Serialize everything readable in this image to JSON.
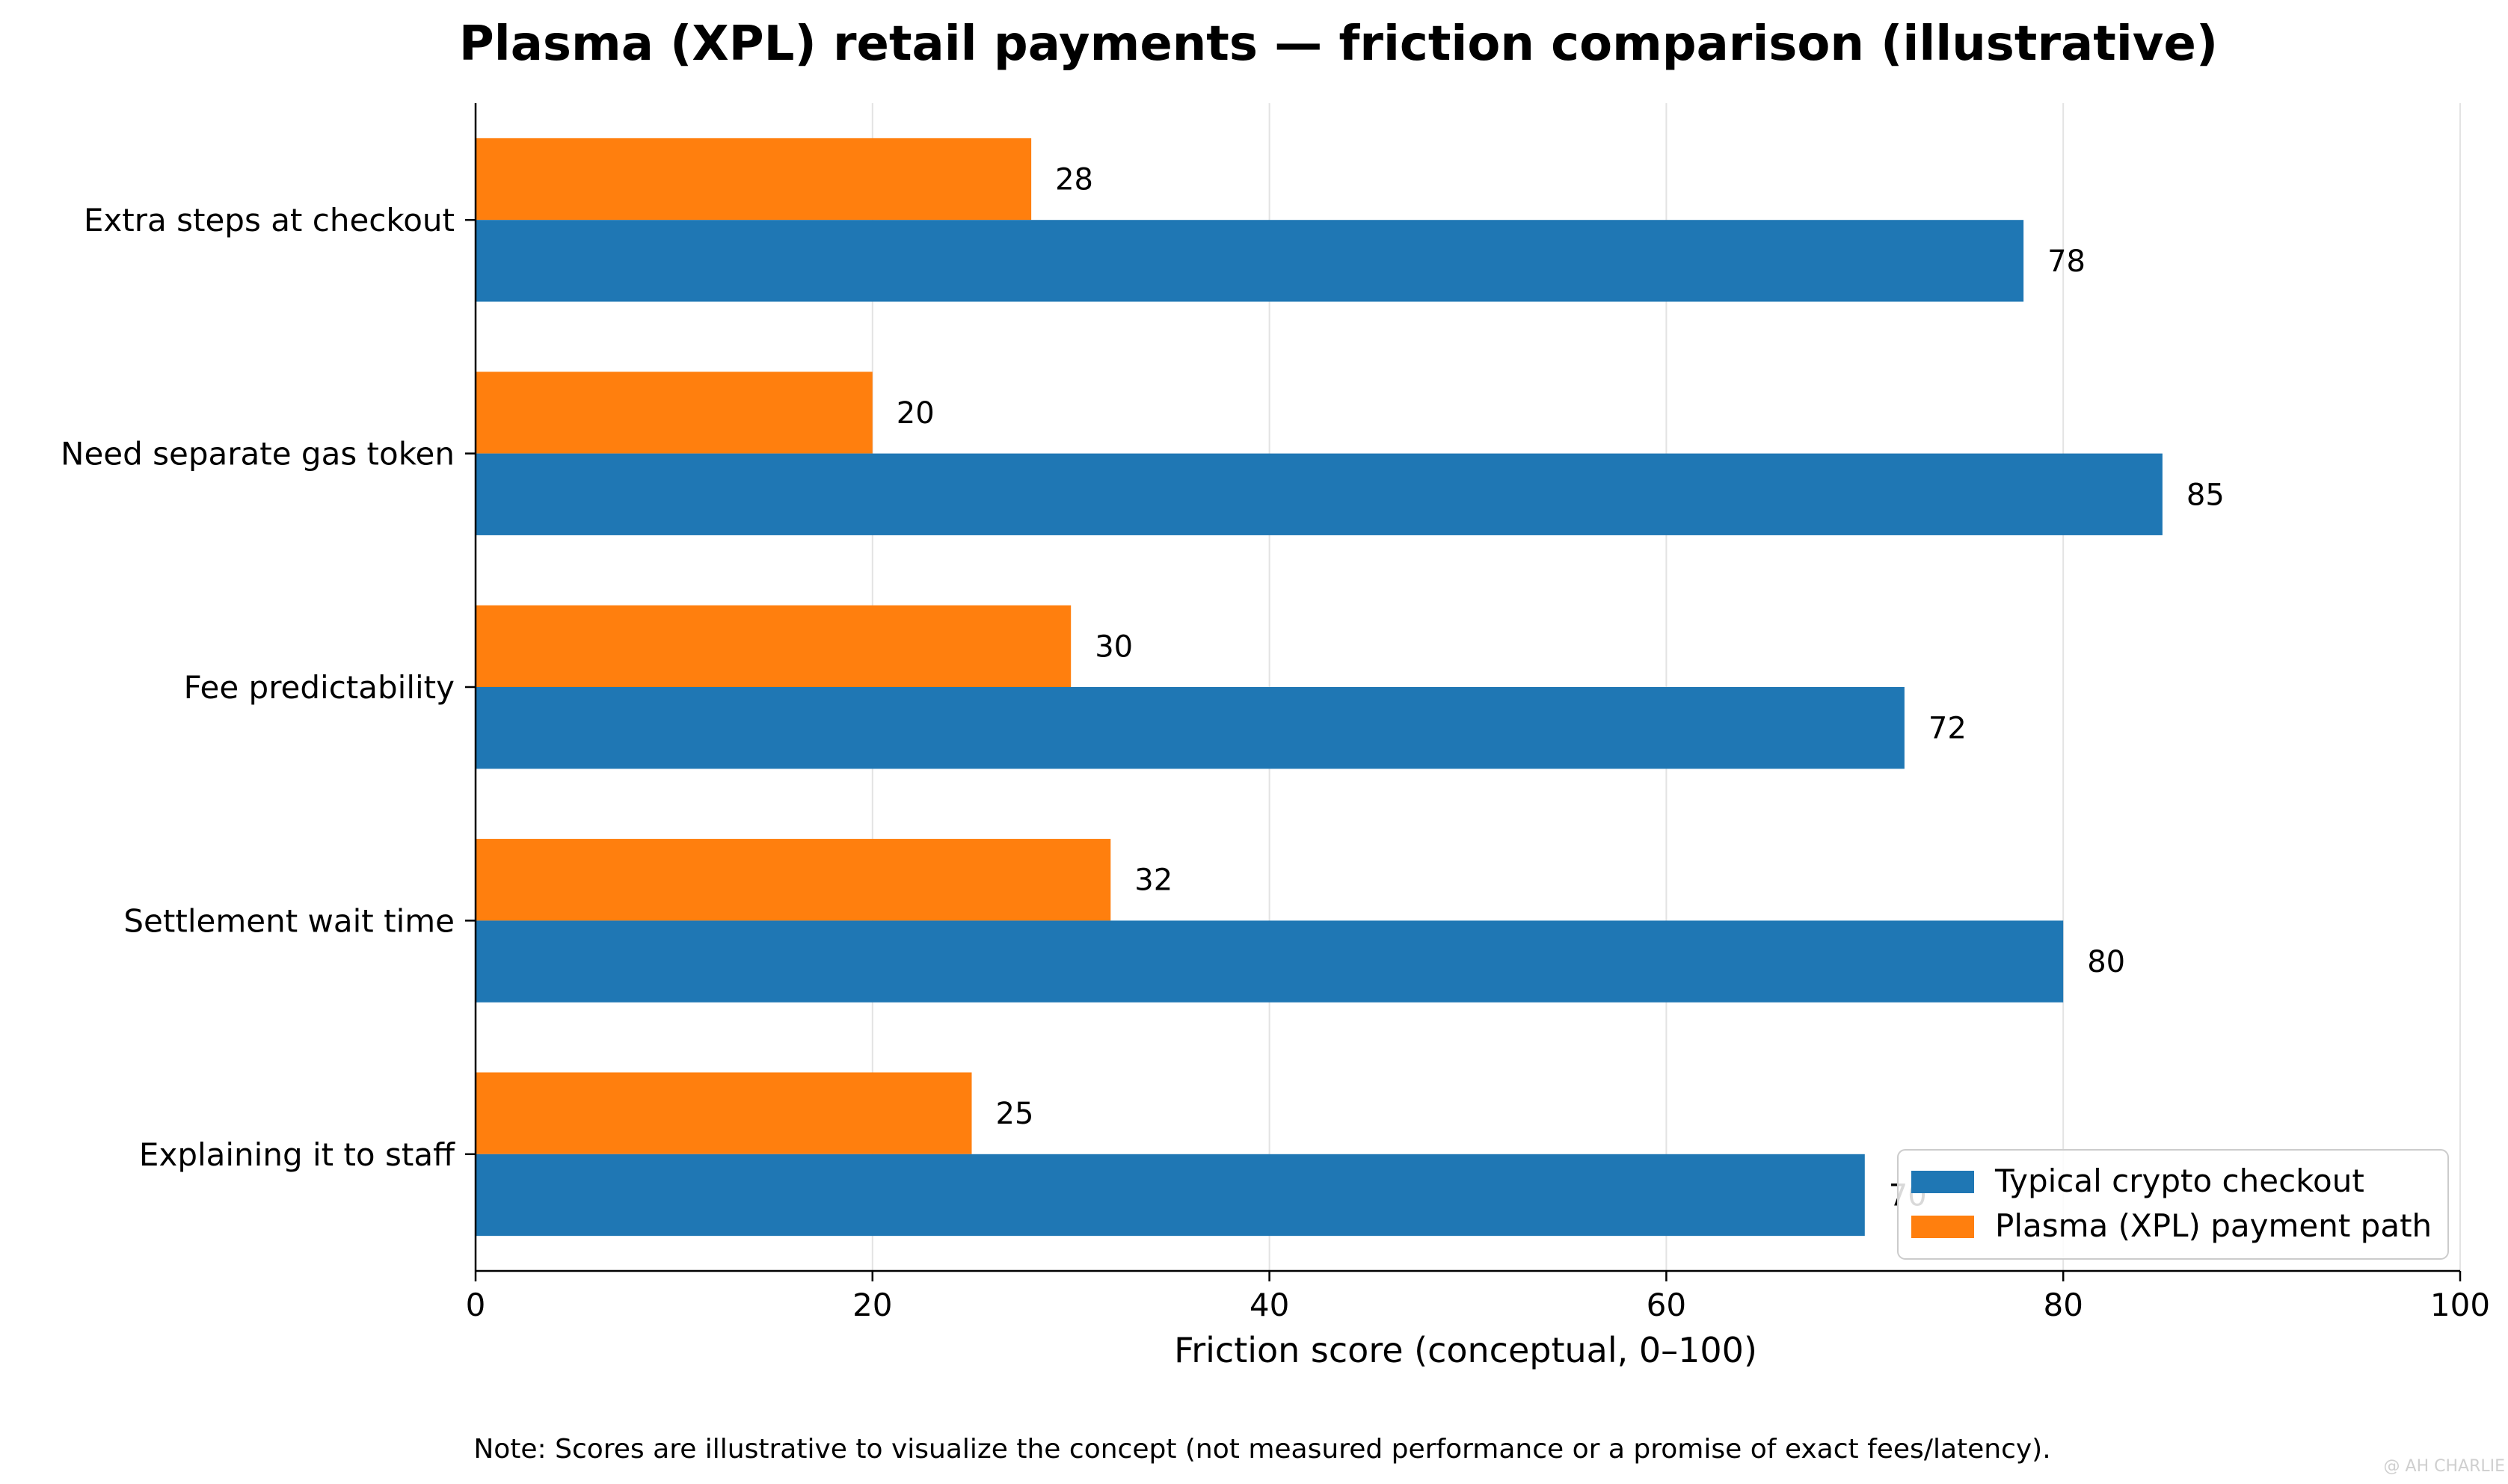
{
  "chart_data": {
    "type": "bar",
    "orientation": "horizontal",
    "title": "Plasma (XPL) retail payments — friction comparison (illustrative)",
    "xlabel": "Friction score (conceptual, 0–100)",
    "ylabel": "",
    "xlim": [
      0,
      100
    ],
    "xticks": [
      0,
      20,
      40,
      60,
      80,
      100
    ],
    "grid": "vertical",
    "legend_position": "lower-right",
    "categories": [
      "Extra steps at checkout",
      "Need separate gas token",
      "Fee predictability",
      "Settlement wait time",
      "Explaining it to staff"
    ],
    "series": [
      {
        "name": "Typical crypto checkout",
        "color": "#1f77b4",
        "values": [
          78,
          85,
          72,
          80,
          70
        ]
      },
      {
        "name": "Plasma (XPL) payment path",
        "color": "#ff7f0e",
        "values": [
          28,
          20,
          30,
          32,
          25
        ]
      }
    ]
  },
  "note": "Note: Scores are illustrative to visualize the concept (not measured performance or a promise of exact fees/latency).",
  "watermark": "@ AH CHARLIE"
}
